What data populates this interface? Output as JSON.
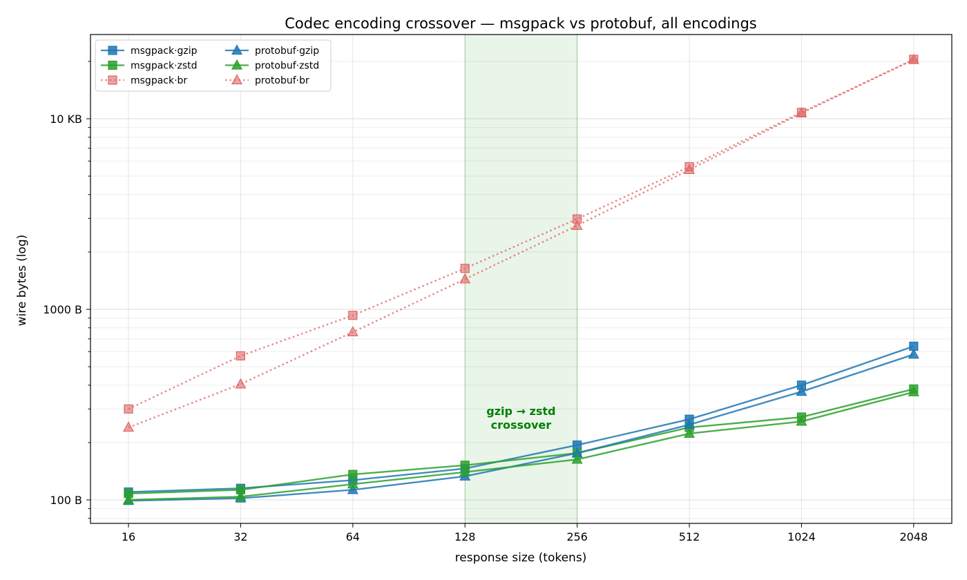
{
  "chart_data": {
    "type": "line",
    "title": "Codec encoding crossover — msgpack vs protobuf, all encodings",
    "xlabel": "response size (tokens)",
    "ylabel": "wire bytes (log)",
    "x_scale": "log2",
    "y_scale": "log10",
    "x": [
      16,
      32,
      64,
      128,
      256,
      512,
      1024,
      2048
    ],
    "x_tick_labels": [
      "16",
      "32",
      "64",
      "128",
      "256",
      "512",
      "1024",
      "2048"
    ],
    "y_ticks": [
      100,
      1000,
      10000
    ],
    "y_tick_labels": [
      "100 B",
      "1000 B",
      "10 KB"
    ],
    "ylim": [
      76,
      25500
    ],
    "xlim": [
      12.8,
      2620
    ],
    "grid": true,
    "legend_position": "top-left",
    "shaded_region": {
      "x_start": 128,
      "x_end": 256,
      "color": "#2ca02c"
    },
    "annotations": [
      {
        "lines": [
          "gzip → zstd",
          "crossover"
        ],
        "x": 181,
        "y": 270
      }
    ],
    "series": [
      {
        "name": "msgpack·gzip",
        "color": "#1f77b4",
        "marker": "square",
        "dash": "solid",
        "values": [
          110,
          115,
          127,
          146,
          194,
          265,
          400,
          640
        ]
      },
      {
        "name": "msgpack·zstd",
        "color": "#2ca02c",
        "marker": "square",
        "dash": "solid",
        "values": [
          108,
          113,
          136,
          152,
          176,
          240,
          272,
          382
        ]
      },
      {
        "name": "msgpack·br",
        "color": "#e06666",
        "marker": "square",
        "dash": "dotted",
        "values": [
          300,
          570,
          930,
          1640,
          2980,
          5600,
          10800,
          20500
        ]
      },
      {
        "name": "protobuf·gzip",
        "color": "#1f77b4",
        "marker": "triangle",
        "dash": "solid",
        "values": [
          99,
          102,
          113,
          133,
          176,
          248,
          370,
          580
        ]
      },
      {
        "name": "protobuf·zstd",
        "color": "#2ca02c",
        "marker": "triangle",
        "dash": "solid",
        "values": [
          100,
          104,
          121,
          140,
          163,
          223,
          258,
          368
        ]
      },
      {
        "name": "protobuf·br",
        "color": "#e06666",
        "marker": "triangle",
        "dash": "dotted",
        "values": [
          240,
          405,
          760,
          1440,
          2750,
          5400,
          10700,
          20400
        ]
      }
    ]
  }
}
